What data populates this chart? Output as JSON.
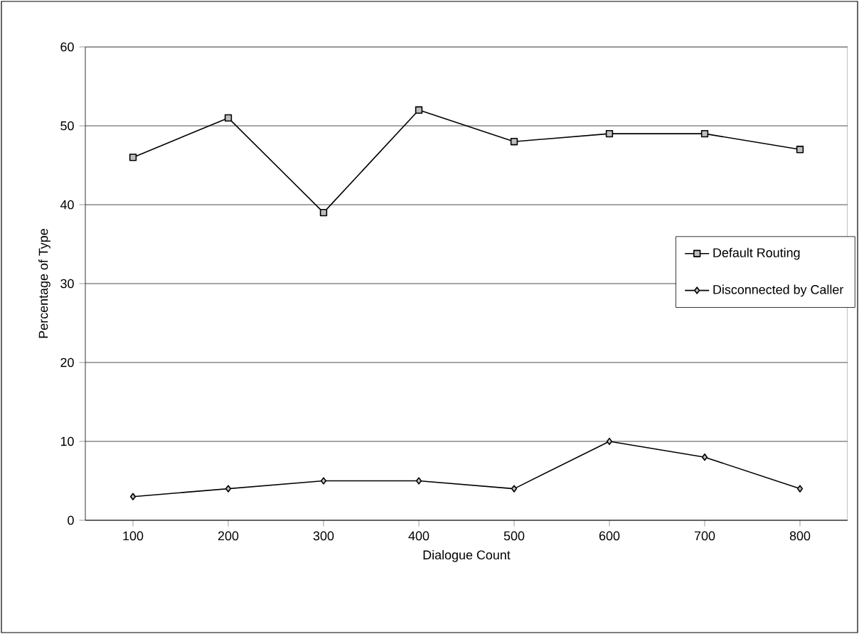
{
  "chart_data": {
    "type": "line",
    "xlabel": "Dialogue Count",
    "ylabel": "Percentage of Type",
    "categories": [
      "100",
      "200",
      "300",
      "400",
      "500",
      "600",
      "700",
      "800"
    ],
    "series": [
      {
        "name": "Default Routing",
        "color": "#000000",
        "marker": "square",
        "values": [
          46,
          51,
          39,
          52,
          48,
          49,
          49,
          47
        ]
      },
      {
        "name": "Disconnected by Caller",
        "color": "#000000",
        "marker": "diamond",
        "values": [
          3,
          4,
          5,
          5,
          4,
          10,
          8,
          4
        ]
      }
    ],
    "ylim": [
      0,
      60
    ],
    "yticks": [
      0,
      10,
      20,
      30,
      40,
      50,
      60
    ],
    "grid": "y",
    "legend": "right",
    "line_style": "solid"
  }
}
